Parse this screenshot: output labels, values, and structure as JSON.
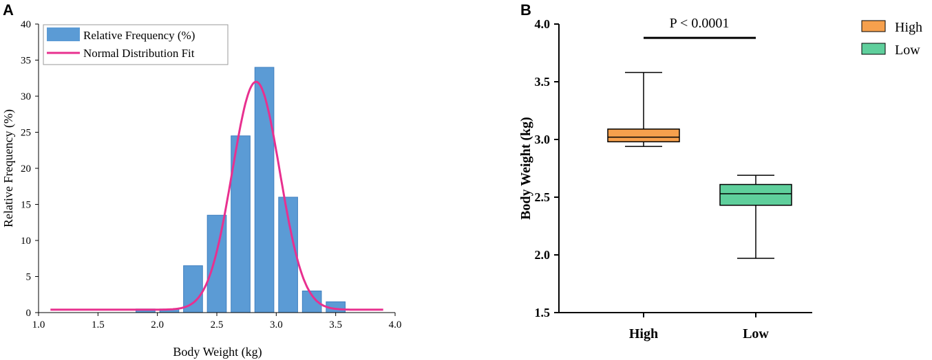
{
  "chart_data": [
    {
      "panel": "A",
      "type": "bar",
      "title": "",
      "xlabel": "Body Weight (kg)",
      "ylabel": "Relative Frequency (%)",
      "xlim": [
        1.0,
        4.0
      ],
      "ylim": [
        0,
        40
      ],
      "xticks": [
        "1.0",
        "1.5",
        "2.0",
        "2.5",
        "3.0",
        "3.5",
        "4.0"
      ],
      "yticks": [
        "0",
        "5",
        "10",
        "15",
        "20",
        "25",
        "30",
        "35",
        "40"
      ],
      "bin_width": 0.2,
      "bin_centers": [
        1.9,
        2.1,
        2.3,
        2.5,
        2.7,
        2.9,
        3.1,
        3.3,
        3.5
      ],
      "values": [
        0.5,
        0.5,
        6.5,
        13.5,
        24.5,
        34,
        16,
        3,
        1.5
      ],
      "bar_color": "#5b9bd5",
      "fit": {
        "name": "Normal Distribution Fit",
        "type": "line",
        "mean": 2.83,
        "sd": 0.2,
        "peak": 32,
        "baseline": 0.4,
        "x_range": [
          1.1,
          3.9
        ],
        "color": "#e8308f"
      },
      "legend": [
        {
          "label": "Relative Frequency (%)",
          "kind": "bar",
          "color": "#5b9bd5"
        },
        {
          "label": "Normal Distribution Fit",
          "kind": "line",
          "color": "#e8308f"
        }
      ],
      "legend_position": "top-left"
    },
    {
      "panel": "B",
      "type": "box",
      "title": "",
      "xlabel": "",
      "ylabel": "Body Weight (kg)",
      "ylim": [
        1.5,
        4.0
      ],
      "yticks": [
        "1.5",
        "2.0",
        "2.5",
        "3.0",
        "3.5",
        "4.0"
      ],
      "categories": [
        "High",
        "Low"
      ],
      "boxes": [
        {
          "name": "High",
          "min": 2.94,
          "q1": 2.98,
          "median": 3.02,
          "q3": 3.09,
          "max": 3.58,
          "color": "#f6a04d"
        },
        {
          "name": "Low",
          "min": 1.97,
          "q1": 2.43,
          "median": 2.53,
          "q3": 2.61,
          "max": 2.69,
          "color": "#5fcf9c"
        }
      ],
      "annotation": {
        "text": "P < 0.0001",
        "y": 3.88
      },
      "legend": [
        {
          "label": "High",
          "color": "#f6a04d"
        },
        {
          "label": "Low",
          "color": "#5fcf9c"
        }
      ],
      "legend_position": "top-right"
    }
  ]
}
